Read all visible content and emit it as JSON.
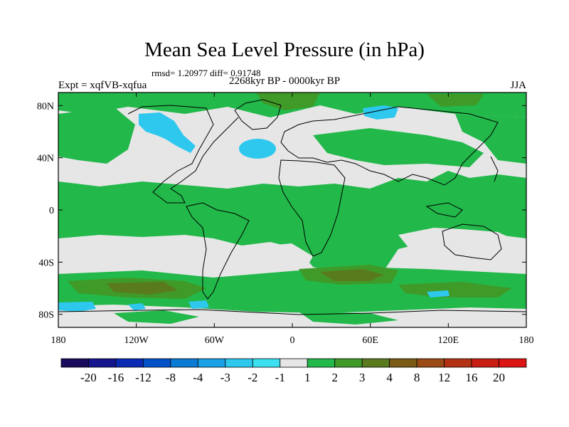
{
  "title": "Mean Sea Level Pressure (in hPa)",
  "stats": "rmsd= 1.20977 diff= 0.91748",
  "experiment": "Expt = xqfVB-xqfua",
  "period": "2268kyr BP - 0000kyr BP",
  "season": "JJA",
  "chart_data": {
    "type": "map",
    "variable": "Mean Sea Level Pressure difference",
    "units": "hPa",
    "x_ticks": [
      "180",
      "120W",
      "60W",
      "0",
      "60E",
      "120E",
      "180"
    ],
    "x_tick_values": [
      -180,
      -120,
      -60,
      0,
      60,
      120,
      180
    ],
    "y_ticks": [
      "80N",
      "40N",
      "0",
      "40S",
      "80S"
    ],
    "y_tick_values": [
      80,
      40,
      0,
      -40,
      -80
    ],
    "xlim": [
      -180,
      180
    ],
    "ylim": [
      -90,
      90
    ],
    "colorbar": {
      "labels": [
        "-20",
        "-16",
        "-12",
        "-8",
        "-4",
        "-3",
        "-2",
        "-1",
        "1",
        "2",
        "3",
        "4",
        "8",
        "12",
        "16",
        "20"
      ],
      "colors": [
        "#1a0a5e",
        "#14148c",
        "#0a2ab4",
        "#0050c8",
        "#0a7ad2",
        "#1aa0e6",
        "#2ec8ef",
        "#3ce0f0",
        "#e6e6e6",
        "#22b84a",
        "#3f9a28",
        "#5a7a1e",
        "#7a5a14",
        "#9a4a14",
        "#b43214",
        "#c81e14",
        "#dc1414"
      ]
    }
  }
}
